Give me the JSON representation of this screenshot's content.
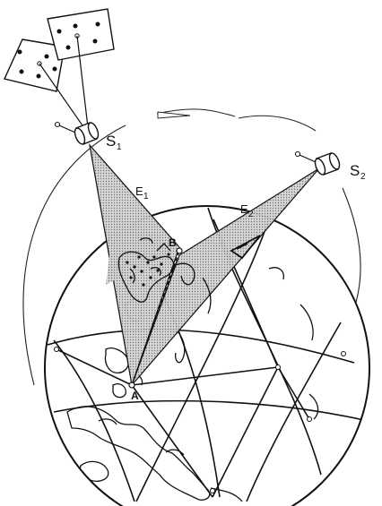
{
  "labels": {
    "satellite_1": "S",
    "satellite_1_sub": "1",
    "satellite_2": "S",
    "satellite_2_sub": "2",
    "beam_1": "E",
    "beam_1_sub": "1",
    "beam_2": "E",
    "beam_2_sub": "2",
    "point_a": "A",
    "point_b": "B"
  },
  "colors": {
    "ink": "#111111",
    "beam_fill": "#bdbdbd",
    "background": "#ffffff"
  }
}
